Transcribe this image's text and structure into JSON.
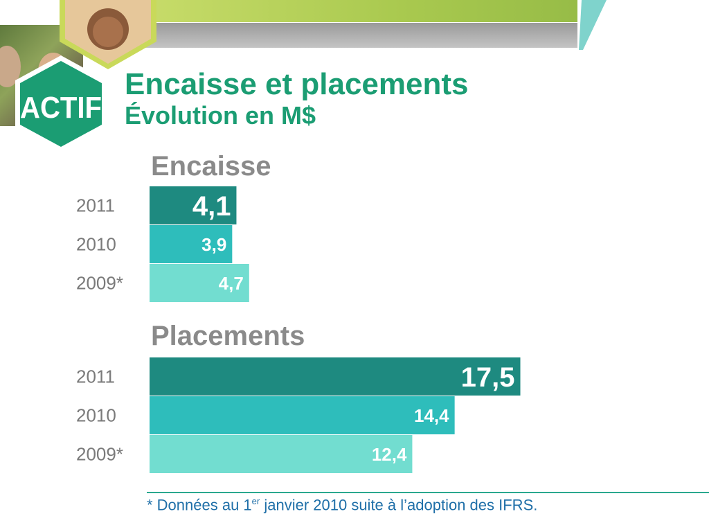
{
  "header": {
    "title": "Encaisse et placements",
    "subtitle": "Évolution en M$",
    "logo_text": "ACTIF"
  },
  "colors": {
    "accent": "#1b9d73",
    "year_2011": "#1e8a80",
    "year_2010": "#2ebdbb",
    "year_2009": "#72ddd0"
  },
  "chart_data": [
    {
      "type": "bar",
      "orientation": "horizontal",
      "title": "Encaisse",
      "categories": [
        "2011",
        "2010",
        "2009*"
      ],
      "values": [
        4.1,
        3.9,
        4.7
      ],
      "value_labels": [
        "4,1",
        "3,9",
        "4,7"
      ]
    },
    {
      "type": "bar",
      "orientation": "horizontal",
      "title": "Placements",
      "categories": [
        "2011",
        "2010",
        "2009*"
      ],
      "values": [
        17.5,
        14.4,
        12.4
      ],
      "value_labels": [
        "17,5",
        "14,4",
        "12,4"
      ]
    }
  ],
  "footnote": {
    "prefix": "* Données au 1",
    "superscript": "er",
    "suffix": " janvier 2010 suite à l’adoption des IFRS."
  }
}
